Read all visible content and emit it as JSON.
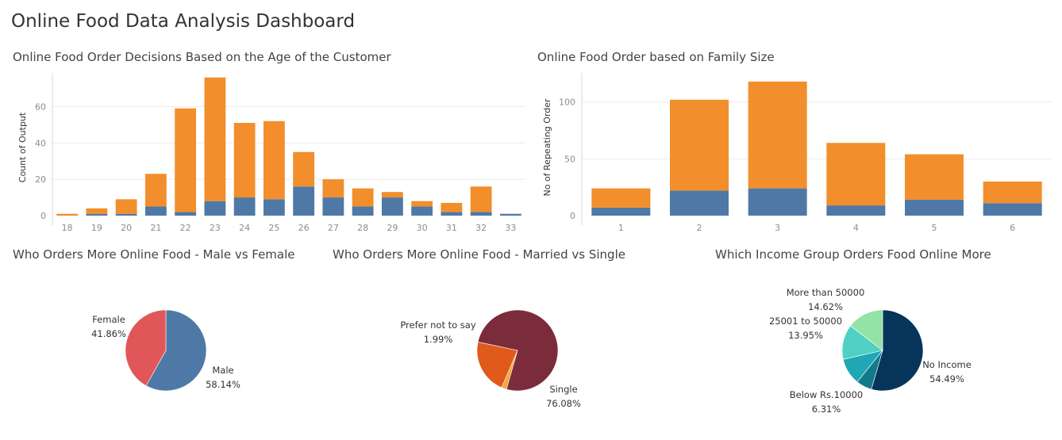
{
  "dashboard": {
    "title": "Online Food Data Analysis Dashboard"
  },
  "colors": {
    "blue": "#4e79a7",
    "orange": "#f28e2b",
    "grid": "#ececec",
    "axis": "#d9d9d9",
    "tick": "#8c8c8c"
  },
  "chart_data": [
    {
      "id": "age",
      "type": "bar",
      "title": "Online Food Order Decisions Based on the Age of the Customer",
      "ylabel": "Count of Output",
      "xlabel": "",
      "ylim": [
        0,
        75
      ],
      "yticks": [
        0,
        20,
        40,
        60
      ],
      "grid": true,
      "categories": [
        "18",
        "19",
        "20",
        "21",
        "22",
        "23",
        "24",
        "25",
        "26",
        "27",
        "28",
        "29",
        "30",
        "31",
        "32",
        "33"
      ],
      "series": [
        {
          "values": [
            0,
            1,
            1,
            5,
            2,
            8,
            10,
            9,
            16,
            10,
            5,
            10,
            5,
            2,
            2,
            1
          ],
          "color": "#4e79a7"
        },
        {
          "values": [
            1,
            3,
            8,
            18,
            57,
            68,
            41,
            43,
            19,
            10,
            10,
            3,
            3,
            5,
            14,
            0
          ],
          "color": "#f28e2b"
        }
      ]
    },
    {
      "id": "family",
      "type": "bar",
      "title": "Online Food Order based on Family Size",
      "ylabel": "No of Repeating Order",
      "xlabel": "",
      "ylim": [
        0,
        120
      ],
      "yticks": [
        0,
        50,
        100
      ],
      "grid": true,
      "categories": [
        "1",
        "2",
        "3",
        "4",
        "5",
        "6"
      ],
      "series": [
        {
          "values": [
            7,
            22,
            24,
            9,
            14,
            11
          ],
          "color": "#4e79a7"
        },
        {
          "values": [
            17,
            80,
            94,
            55,
            40,
            19
          ],
          "color": "#f28e2b"
        }
      ]
    },
    {
      "id": "gender",
      "type": "pie",
      "title": "Who Orders More Online Food - Male vs Female",
      "slices": [
        {
          "label": "Male",
          "value": 58.14,
          "pct": "58.14%",
          "color": "#4e79a7"
        },
        {
          "label": "Female",
          "value": 41.86,
          "pct": "41.86%",
          "color": "#e15759"
        }
      ]
    },
    {
      "id": "marital",
      "type": "pie",
      "title": "Who Orders More Online Food - Married vs Single",
      "slices": [
        {
          "label": "Single",
          "value": 76.08,
          "pct": "76.08%",
          "color": "#7b2c3a"
        },
        {
          "label": "Prefer not to say",
          "value": 1.99,
          "pct": "1.99%",
          "color": "#f4a535"
        },
        {
          "label": "",
          "value": 21.93,
          "pct": "",
          "color": "#e05a1b"
        }
      ]
    },
    {
      "id": "income",
      "type": "pie",
      "title": "Which Income Group Orders Food Online More",
      "slices": [
        {
          "label": "No Income",
          "value": 54.49,
          "pct": "54.49%",
          "color": "#07345b"
        },
        {
          "label": "Below Rs.10000",
          "value": 6.31,
          "pct": "6.31%",
          "color": "#137a8c"
        },
        {
          "label": "",
          "value": 10.63,
          "pct": "",
          "color": "#1fa7b5"
        },
        {
          "label": "25001 to 50000",
          "value": 13.95,
          "pct": "13.95%",
          "color": "#4fd0c3"
        },
        {
          "label": "More than 50000",
          "value": 14.62,
          "pct": "14.62%",
          "color": "#93e3a6"
        }
      ]
    }
  ]
}
